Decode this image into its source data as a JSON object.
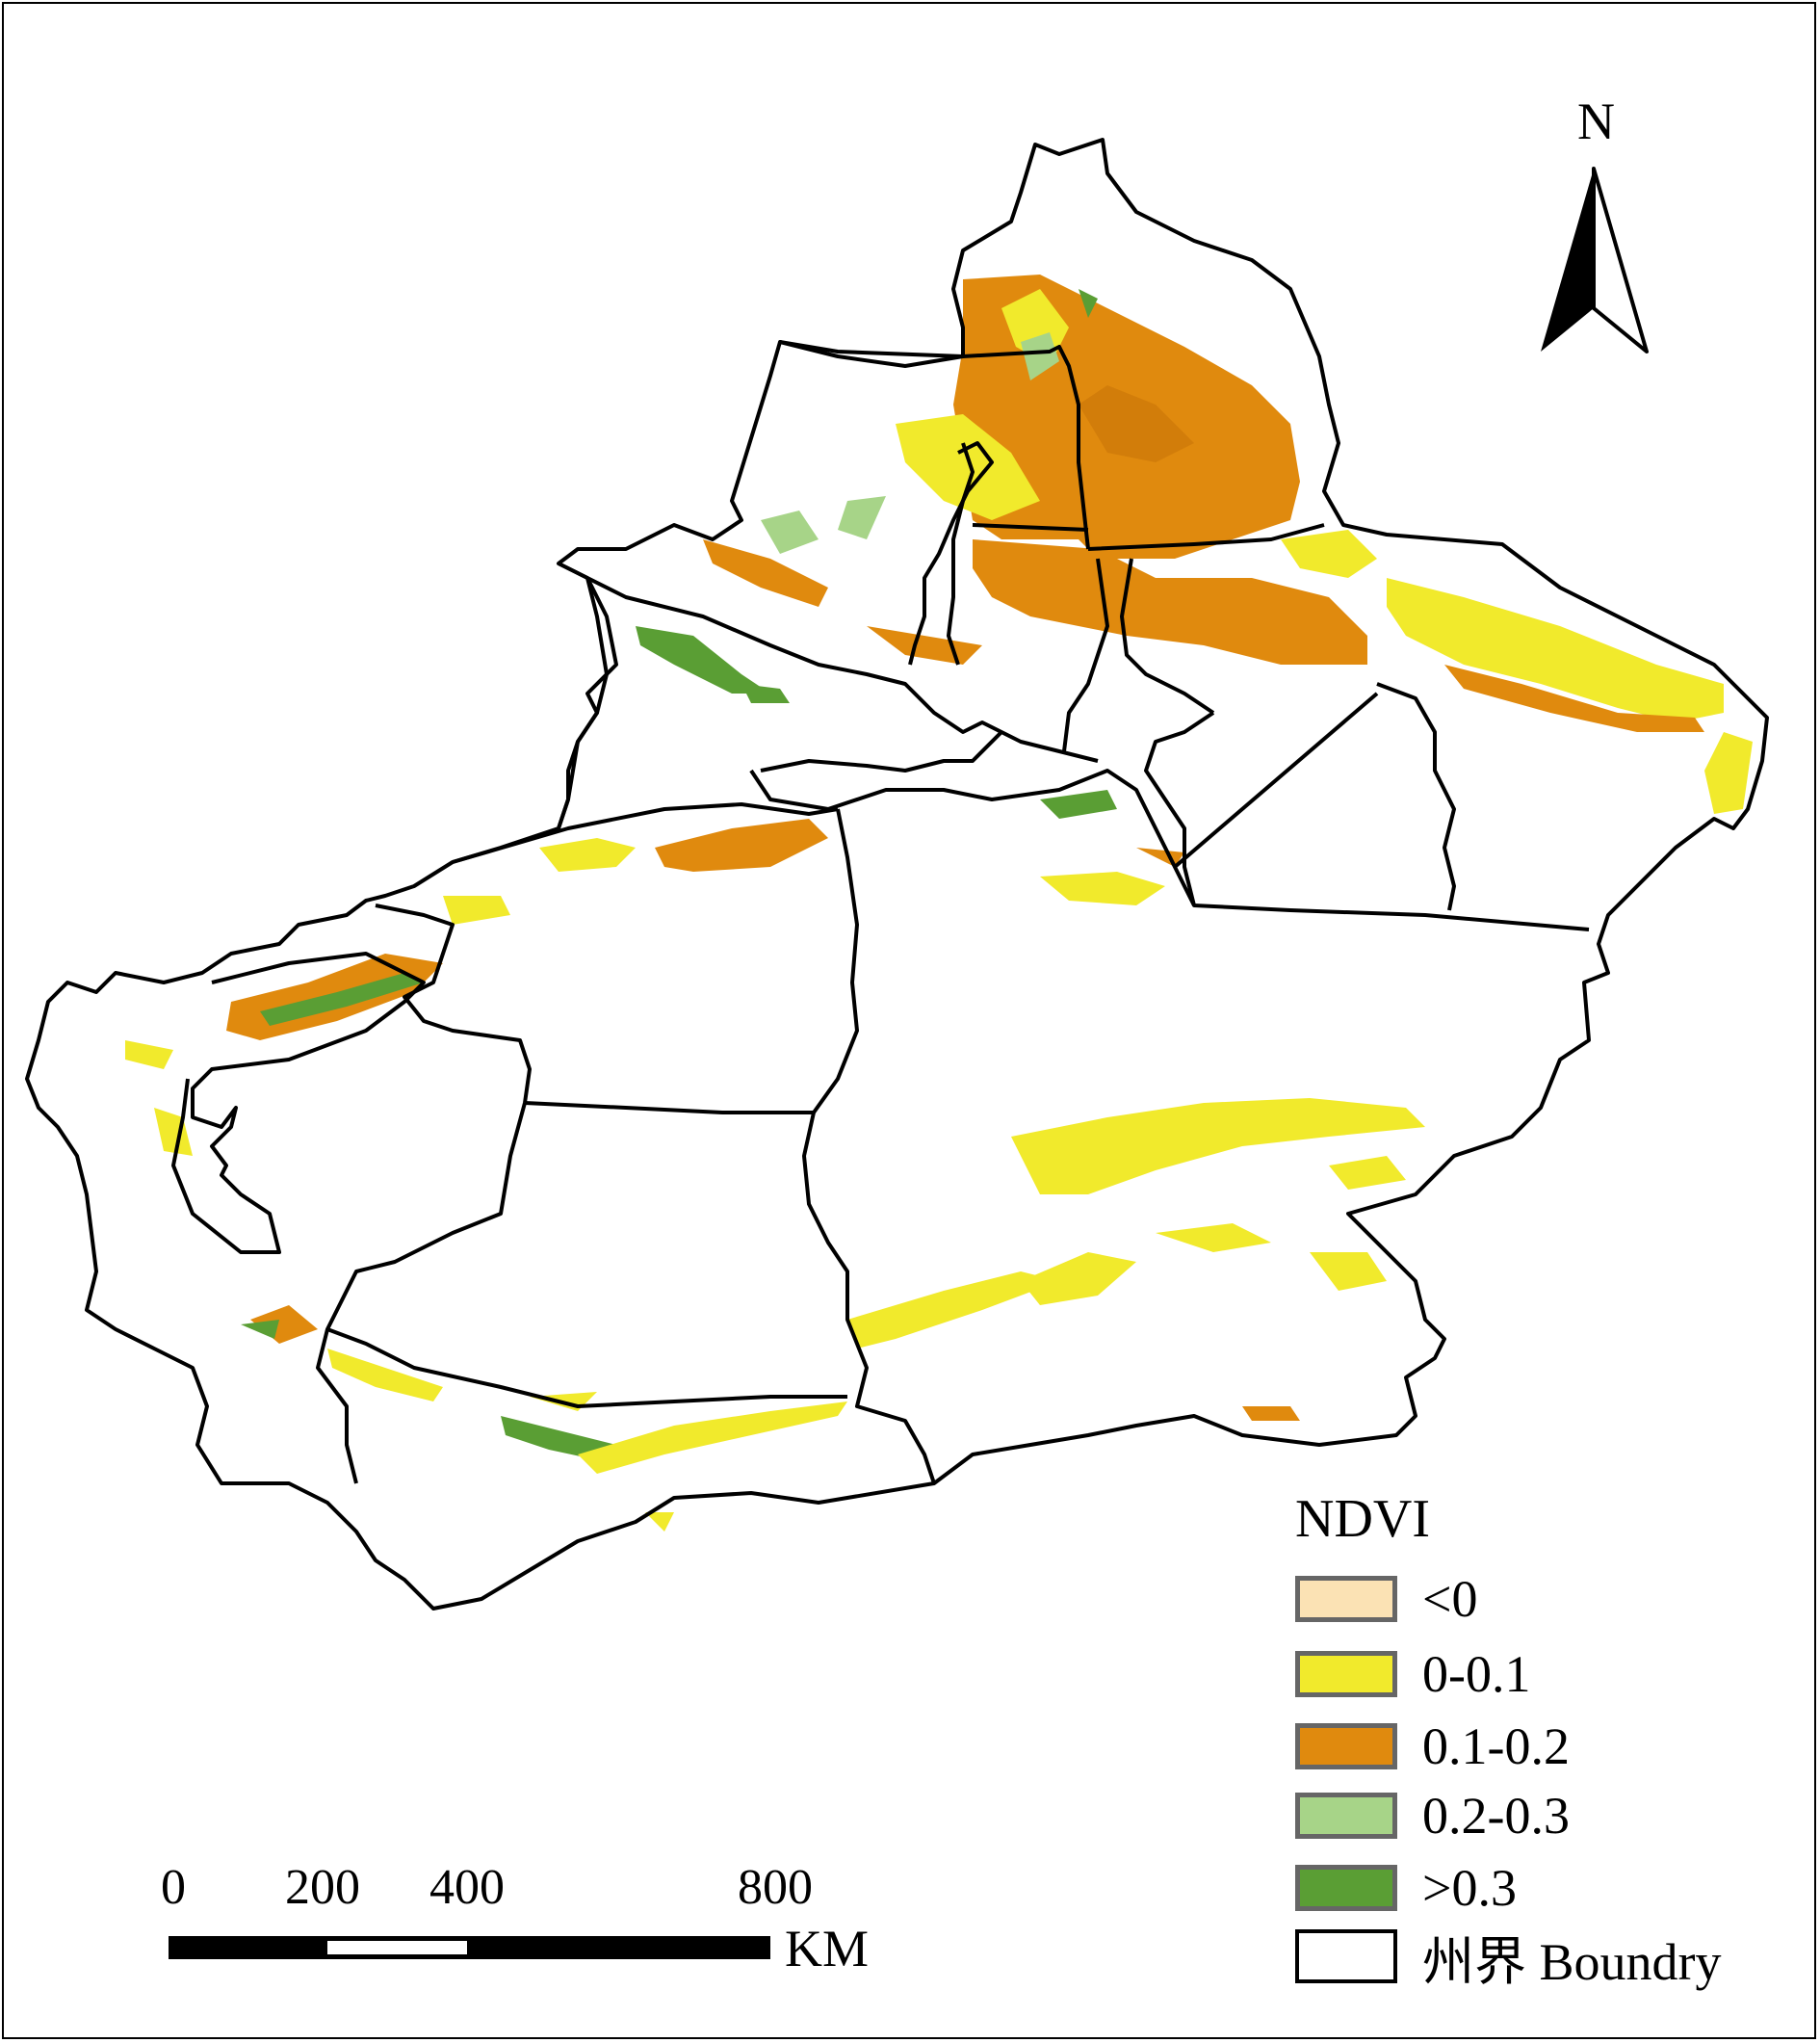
{
  "north": {
    "label": "N",
    "icon": "north-arrow-icon"
  },
  "legend": {
    "title": "NDVI",
    "items": [
      {
        "label": "<0",
        "color": "#fbe2b4"
      },
      {
        "label": "0-0.1",
        "color": "#f1ea2c"
      },
      {
        "label": "0.1-0.2",
        "color": "#e08a0e"
      },
      {
        "label": "0.2-0.3",
        "color": "#a7d488"
      },
      {
        "label": ">0.3",
        "color": "#5a9e34"
      },
      {
        "label": "州界 Boundry",
        "color": "#ffffff"
      }
    ]
  },
  "scale_bar": {
    "ticks": [
      "0",
      "200",
      "400",
      "800"
    ],
    "unit": "KM"
  },
  "colors": {
    "boundary": "#000000",
    "background": "#ffffff"
  }
}
